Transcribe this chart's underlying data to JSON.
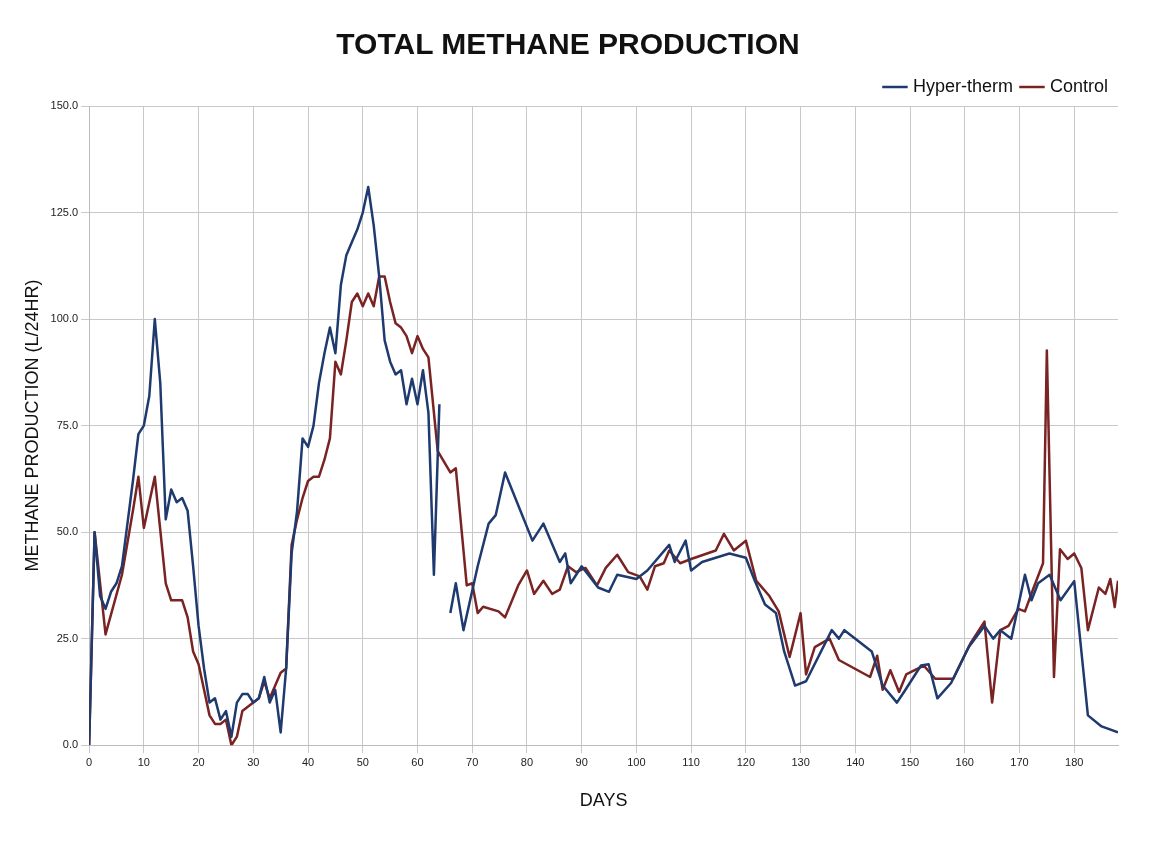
{
  "chart_data": {
    "type": "line",
    "title": "TOTAL METHANE PRODUCTION",
    "xlabel": "DAYS",
    "ylabel": "METHANE PRODUCTION (L/24HR)",
    "legend": "top right",
    "grid": true,
    "marker": "none",
    "xlim": [
      0,
      188
    ],
    "xticks": [
      0,
      10,
      20,
      30,
      40,
      50,
      60,
      70,
      80,
      90,
      100,
      110,
      120,
      130,
      140,
      150,
      160,
      170,
      180
    ],
    "ylim": [
      0,
      150
    ],
    "yticks": [
      {
        "value": 0,
        "label": "0.0"
      },
      {
        "value": 25,
        "label": "25.0"
      },
      {
        "value": 50,
        "label": "50.0"
      },
      {
        "value": 75,
        "label": "75.0"
      },
      {
        "value": 100,
        "label": "100.0"
      },
      {
        "value": 125,
        "label": "125.0"
      },
      {
        "value": 150,
        "label": "150.0"
      }
    ],
    "series": [
      {
        "name": "Hyper-therm",
        "color": "#1f3a6e",
        "x": [
          0,
          1,
          2,
          3,
          4,
          5,
          6,
          7,
          8,
          9,
          10,
          11,
          12,
          13,
          14,
          15,
          16,
          17,
          18,
          19,
          20,
          21,
          22,
          23,
          24,
          25,
          26,
          27,
          28,
          29,
          30,
          31,
          32,
          33,
          34,
          35,
          36,
          37,
          38,
          39,
          40,
          41,
          42,
          43,
          44,
          45,
          46,
          47,
          48,
          49,
          50,
          51,
          52,
          53,
          54,
          55,
          56,
          57,
          58,
          59,
          60,
          61,
          62,
          63,
          64,
          65,
          66,
          67,
          68.4,
          71,
          73,
          74.3,
          76,
          81,
          83,
          86,
          87,
          88,
          90,
          93,
          95,
          96.5,
          100,
          102,
          106,
          107,
          109,
          110,
          112,
          117,
          120,
          121.5,
          123.5,
          125.5,
          127,
          129,
          131,
          135.7,
          137,
          138,
          143,
          145,
          147.6,
          148.9,
          152,
          153.4,
          155,
          157.5,
          160.7,
          163.6,
          165.2,
          166.5,
          168.5,
          171,
          172.2,
          173.4,
          175.5,
          177.5,
          180,
          182.5,
          185,
          188
        ],
        "values": [
          0,
          50,
          35,
          32,
          36,
          38,
          42,
          52,
          62,
          73,
          75,
          82,
          100,
          85,
          53,
          60,
          57,
          58,
          55,
          42,
          28,
          18,
          10,
          11,
          6,
          8,
          2,
          10,
          12,
          12,
          10,
          11,
          16,
          10,
          13,
          3,
          18,
          45,
          55,
          72,
          70,
          75,
          85,
          92,
          98,
          92,
          108,
          115,
          118,
          121,
          125,
          131,
          122,
          110,
          95,
          90,
          87,
          88,
          80,
          86,
          80,
          88,
          78,
          40,
          80,
          null,
          31,
          38,
          27,
          42,
          52,
          54,
          64,
          48,
          52,
          43,
          45,
          38,
          42,
          37,
          36,
          40,
          39,
          41,
          47,
          43,
          48,
          41,
          43,
          45,
          44,
          39,
          33,
          31,
          22,
          14,
          15,
          27,
          25,
          27,
          22,
          14,
          10,
          12.5,
          18.7,
          19,
          11,
          14.6,
          23,
          28,
          25,
          27,
          25,
          40,
          34,
          38,
          40,
          34,
          38.5,
          7,
          4.4,
          3
        ]
      },
      {
        "name": "Control",
        "color": "#7a2323",
        "x": [
          0,
          1,
          3,
          6,
          8,
          9,
          10,
          12,
          14,
          15,
          17,
          18,
          19,
          20,
          21,
          22,
          23,
          24,
          25,
          26,
          27,
          28,
          29,
          30,
          31,
          32,
          33,
          34,
          35,
          36,
          37,
          38,
          39,
          40,
          41,
          42,
          43,
          44,
          45,
          46,
          47,
          48,
          49,
          50,
          51,
          52,
          53,
          54,
          55,
          56,
          57,
          58,
          59,
          60,
          61,
          62,
          63.7,
          66,
          67,
          69,
          70,
          71,
          72,
          74.8,
          76,
          78.4,
          80,
          81.3,
          83,
          84.6,
          86,
          87.5,
          89,
          90.7,
          92.8,
          94.4,
          96.5,
          98.5,
          100.6,
          102,
          103.4,
          105,
          106,
          108,
          110,
          114.5,
          116,
          117.8,
          120,
          121.9,
          124.3,
          126,
          128,
          130,
          131,
          132.6,
          135.3,
          137,
          142.7,
          144,
          145,
          146.4,
          148,
          149.3,
          152.5,
          154.6,
          157.9,
          161,
          163.6,
          165,
          166.5,
          168,
          169.8,
          171,
          172.6,
          174.3,
          175,
          176.3,
          177.4,
          178.8,
          180,
          181.3,
          182.5,
          184.5,
          185.7,
          186.6,
          187.4,
          188
        ],
        "values": [
          0,
          50,
          26,
          40,
          55,
          63,
          51,
          63,
          38,
          34,
          34,
          30,
          22,
          19,
          13,
          7,
          5,
          5,
          6,
          0,
          2,
          8,
          9,
          10,
          11,
          15,
          11,
          14,
          17,
          18,
          47,
          53,
          58,
          62,
          63,
          63,
          67,
          72,
          90,
          87,
          95,
          104,
          106,
          103,
          106,
          103,
          110,
          110,
          104,
          99,
          98,
          96,
          92,
          96,
          93,
          91,
          69,
          64,
          65,
          37.5,
          38,
          31,
          32.5,
          31.4,
          30,
          37.5,
          41,
          35.5,
          38.6,
          35.5,
          36.5,
          42,
          40.6,
          41.6,
          37.5,
          41.6,
          44.7,
          40.6,
          39.6,
          36.5,
          42,
          42.7,
          45.7,
          42.7,
          43.7,
          45.7,
          49.6,
          45.7,
          48,
          38.6,
          35,
          31.4,
          20.7,
          31,
          16.6,
          23,
          25,
          20,
          16,
          21,
          13,
          17.6,
          12.5,
          16.6,
          18.7,
          15.6,
          15.6,
          23.8,
          29,
          10,
          27,
          28,
          32,
          31.4,
          37,
          42.7,
          92.6,
          16,
          46,
          43.7,
          45,
          41.6,
          27,
          37,
          35.5,
          39,
          32.4,
          38.6
        ]
      }
    ]
  }
}
